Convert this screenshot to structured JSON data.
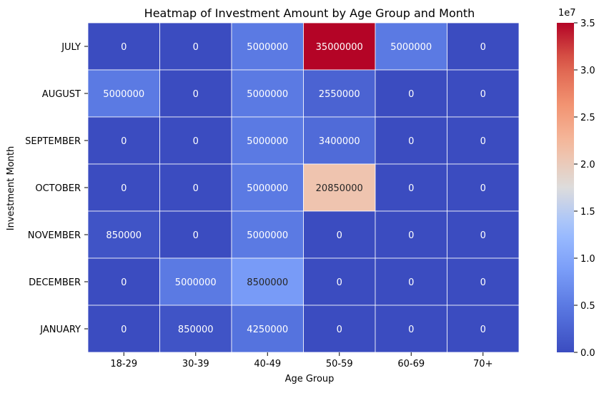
{
  "chart_data": {
    "type": "heatmap",
    "title": "Heatmap of Investment Amount by Age Group and Month",
    "xlabel": "Age Group",
    "ylabel": "Investment Month",
    "x_categories": [
      "18-29",
      "30-39",
      "40-49",
      "50-59",
      "60-69",
      "70+"
    ],
    "y_categories": [
      "JULY",
      "AUGUST",
      "SEPTEMBER",
      "OCTOBER",
      "NOVEMBER",
      "DECEMBER",
      "JANUARY"
    ],
    "values": [
      [
        0,
        0,
        5000000,
        35000000,
        5000000,
        0
      ],
      [
        5000000,
        0,
        5000000,
        2550000,
        0,
        0
      ],
      [
        0,
        0,
        5000000,
        3400000,
        0,
        0
      ],
      [
        0,
        0,
        5000000,
        20850000,
        0,
        0
      ],
      [
        850000,
        0,
        5000000,
        0,
        0,
        0
      ],
      [
        0,
        5000000,
        8500000,
        0,
        0,
        0
      ],
      [
        0,
        850000,
        4250000,
        0,
        0,
        0
      ]
    ],
    "colormap": "coolwarm",
    "vmin": 0,
    "vmax": 35000000,
    "colorbar": {
      "ticks": [
        0.0,
        0.5,
        1.0,
        1.5,
        2.0,
        2.5,
        3.0,
        3.5
      ],
      "tick_labels": [
        "0.0",
        "0.5",
        "1.0",
        "1.5",
        "2.0",
        "2.5",
        "3.0",
        "3.5"
      ],
      "multiplier_label": "1e7",
      "scale": 10000000
    },
    "grid": false,
    "cell_border_color": "#ffffff"
  }
}
